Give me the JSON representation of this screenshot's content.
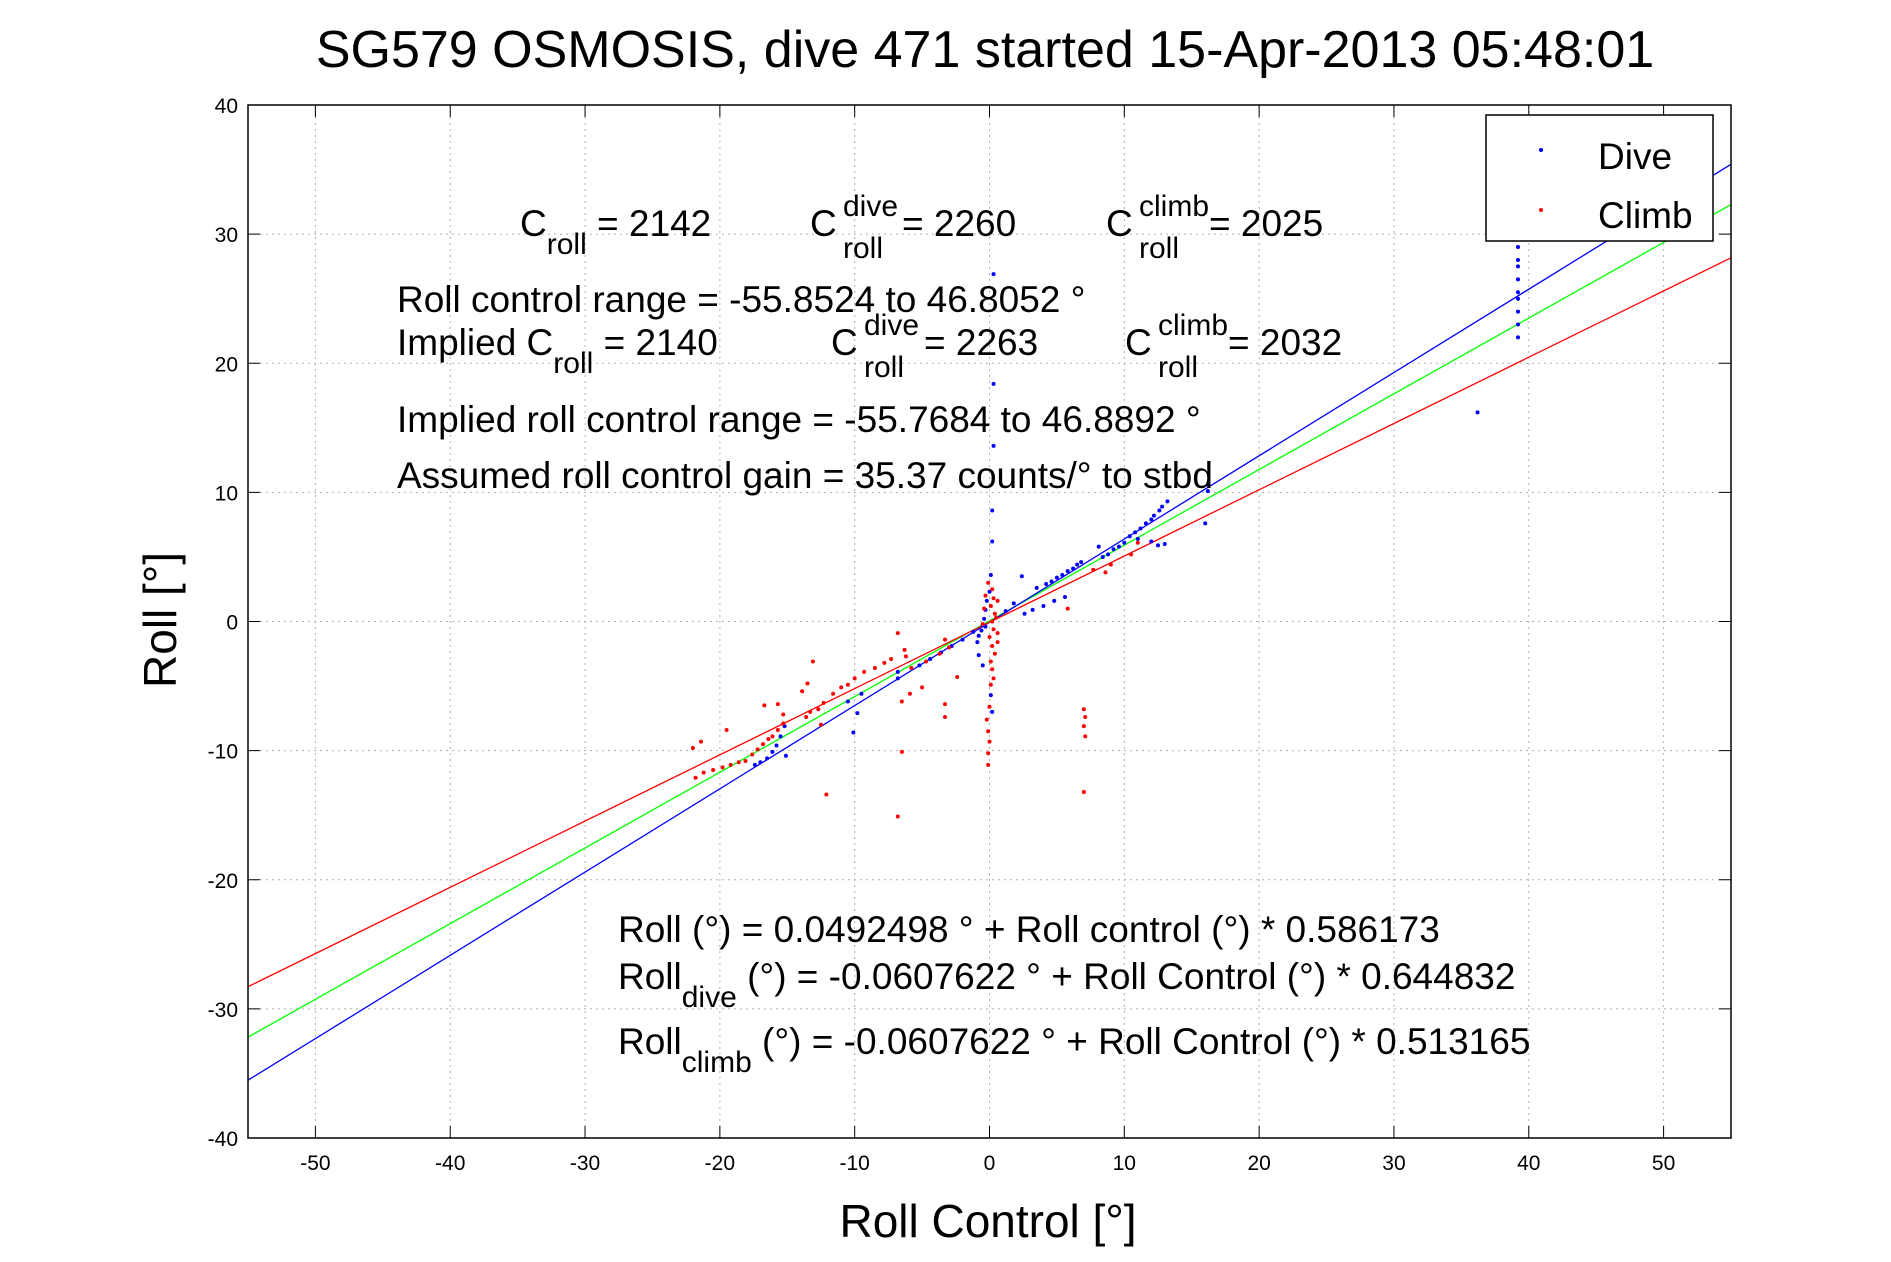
{
  "chart_data": {
    "type": "scatter",
    "title": "SG579 OSMOSIS, dive 471 started 15-Apr-2013 05:48:01",
    "xlabel": "Roll Control [°]",
    "ylabel": "Roll [°]",
    "xlim": [
      -55,
      55
    ],
    "ylim": [
      -40,
      40
    ],
    "xticks": [
      -50,
      -40,
      -30,
      -20,
      -10,
      0,
      10,
      20,
      30,
      40,
      50
    ],
    "yticks": [
      -40,
      -30,
      -20,
      -10,
      0,
      10,
      20,
      30,
      40
    ],
    "grid": true,
    "legend": {
      "position": "top-right",
      "entries": [
        {
          "label": "Dive",
          "color": "#0000ff"
        },
        {
          "label": "Climb",
          "color": "#ff0000"
        }
      ]
    },
    "series": [
      {
        "name": "Dive",
        "color": "#0000ff",
        "points": [
          [
            39.2,
            30.0
          ],
          [
            39.2,
            29.0
          ],
          [
            39.2,
            28.0
          ],
          [
            39.2,
            27.5
          ],
          [
            39.2,
            26.5
          ],
          [
            39.2,
            25.5
          ],
          [
            39.2,
            25.0
          ],
          [
            39.2,
            24.0
          ],
          [
            39.2,
            23.0
          ],
          [
            39.2,
            22.0
          ],
          [
            36.2,
            16.2
          ],
          [
            16.2,
            10.6
          ],
          [
            16.2,
            10.1
          ],
          [
            16.0,
            7.6
          ],
          [
            13.2,
            9.3
          ],
          [
            12.8,
            8.9
          ],
          [
            12.6,
            8.6
          ],
          [
            12.2,
            8.2
          ],
          [
            12.0,
            7.9
          ],
          [
            11.6,
            7.6
          ],
          [
            11.2,
            7.2
          ],
          [
            10.8,
            6.9
          ],
          [
            10.4,
            6.6
          ],
          [
            10.0,
            6.1
          ],
          [
            9.6,
            5.8
          ],
          [
            9.2,
            5.6
          ],
          [
            8.8,
            5.2
          ],
          [
            8.4,
            5.0
          ],
          [
            8.1,
            5.8
          ],
          [
            13.0,
            6.0
          ],
          [
            12.5,
            5.9
          ],
          [
            12.0,
            6.2
          ],
          [
            11.0,
            6.4
          ],
          [
            6.8,
            4.6
          ],
          [
            6.5,
            4.4
          ],
          [
            6.2,
            4.1
          ],
          [
            5.8,
            3.9
          ],
          [
            5.4,
            3.6
          ],
          [
            5.0,
            3.4
          ],
          [
            4.6,
            3.1
          ],
          [
            4.2,
            2.9
          ],
          [
            3.5,
            2.6
          ],
          [
            5.6,
            1.9
          ],
          [
            4.8,
            1.6
          ],
          [
            4.0,
            1.2
          ],
          [
            3.2,
            0.9
          ],
          [
            2.6,
            0.6
          ],
          [
            2.4,
            3.5
          ],
          [
            1.8,
            1.4
          ],
          [
            1.2,
            0.8
          ],
          [
            0.3,
            26.9
          ],
          [
            0.3,
            18.4
          ],
          [
            0.3,
            13.6
          ],
          [
            0.2,
            8.6
          ],
          [
            0.2,
            6.2
          ],
          [
            0.1,
            3.6
          ],
          [
            0.0,
            2.3
          ],
          [
            -0.2,
            1.6
          ],
          [
            -0.3,
            0.9
          ],
          [
            -0.4,
            0.2
          ],
          [
            -0.5,
            -0.3
          ],
          [
            -0.6,
            -0.7
          ],
          [
            -0.8,
            -1.1
          ],
          [
            -0.9,
            -1.6
          ],
          [
            -0.8,
            -2.6
          ],
          [
            -0.5,
            -3.4
          ],
          [
            0.1,
            -5.7
          ],
          [
            0.2,
            -7.0
          ],
          [
            -0.3,
            -0.4
          ],
          [
            -1.2,
            -0.8
          ],
          [
            -2.0,
            -1.4
          ],
          [
            -2.8,
            -1.9
          ],
          [
            -3.6,
            -2.4
          ],
          [
            -4.4,
            -2.9
          ],
          [
            -5.2,
            -3.4
          ],
          [
            -6.8,
            -3.9
          ],
          [
            -6.8,
            -4.4
          ],
          [
            -9.5,
            -5.6
          ],
          [
            -9.8,
            -7.1
          ],
          [
            -10.5,
            -6.2
          ],
          [
            -10.1,
            -8.6
          ],
          [
            -15.2,
            -8.1
          ],
          [
            -15.5,
            -8.9
          ],
          [
            -15.8,
            -9.6
          ],
          [
            -16.1,
            -10.1
          ],
          [
            -16.5,
            -10.6
          ],
          [
            -17.0,
            -10.9
          ],
          [
            -17.4,
            -11.1
          ],
          [
            -15.1,
            -10.4
          ]
        ]
      },
      {
        "name": "Climb",
        "color": "#ff0000",
        "points": [
          [
            0.2,
            2.5
          ],
          [
            0.3,
            1.8
          ],
          [
            0.1,
            1.2
          ],
          [
            0.4,
            0.6
          ],
          [
            0.2,
            0.0
          ],
          [
            0.3,
            -0.6
          ],
          [
            0.0,
            -1.2
          ],
          [
            0.2,
            -1.9
          ],
          [
            0.4,
            -2.5
          ],
          [
            0.1,
            -3.1
          ],
          [
            0.2,
            -3.7
          ],
          [
            0.3,
            -4.4
          ],
          [
            -0.1,
            3.0
          ],
          [
            -0.3,
            2.0
          ],
          [
            -0.4,
            1.0
          ],
          [
            -0.5,
            -0.2
          ],
          [
            0.6,
            -0.9
          ],
          [
            0.5,
            0.3
          ],
          [
            0.6,
            1.6
          ],
          [
            0.6,
            -1.6
          ],
          [
            0.1,
            -4.9
          ],
          [
            0.0,
            -6.6
          ],
          [
            -0.2,
            -7.6
          ],
          [
            -0.1,
            -8.5
          ],
          [
            0.0,
            -9.3
          ],
          [
            -0.1,
            -10.2
          ],
          [
            -0.1,
            -11.1
          ],
          [
            7.0,
            -6.8
          ],
          [
            7.1,
            -7.4
          ],
          [
            7.0,
            -8.1
          ],
          [
            7.1,
            -8.9
          ],
          [
            7.0,
            -13.2
          ],
          [
            -6.8,
            -15.1
          ],
          [
            -6.5,
            -10.1
          ],
          [
            -3.3,
            -6.4
          ],
          [
            -3.3,
            -7.4
          ],
          [
            -2.4,
            -4.3
          ],
          [
            -3.7,
            -2.5
          ],
          [
            -3.3,
            -1.4
          ],
          [
            -3.0,
            -2.0
          ],
          [
            -4.7,
            -3.1
          ],
          [
            -5.8,
            -3.6
          ],
          [
            -6.2,
            -2.7
          ],
          [
            -6.3,
            -2.2
          ],
          [
            -6.8,
            -0.9
          ],
          [
            -7.3,
            -2.9
          ],
          [
            -7.8,
            -3.2
          ],
          [
            -8.5,
            -3.6
          ],
          [
            -9.3,
            -3.9
          ],
          [
            -10.0,
            -4.4
          ],
          [
            -10.5,
            -4.9
          ],
          [
            -11.0,
            -5.1
          ],
          [
            -11.6,
            -5.6
          ],
          [
            -12.3,
            -6.3
          ],
          [
            -12.7,
            -6.8
          ],
          [
            -13.3,
            -7.0
          ],
          [
            -13.6,
            -7.4
          ],
          [
            -13.9,
            -5.4
          ],
          [
            -13.5,
            -4.8
          ],
          [
            -13.1,
            -3.1
          ],
          [
            -12.5,
            -8.0
          ],
          [
            -12.1,
            -13.4
          ],
          [
            -15.3,
            -7.9
          ],
          [
            -15.7,
            -8.4
          ],
          [
            -16.1,
            -8.9
          ],
          [
            -16.4,
            -9.1
          ],
          [
            -16.8,
            -9.5
          ],
          [
            -17.2,
            -9.9
          ],
          [
            -17.6,
            -10.3
          ],
          [
            -18.1,
            -10.8
          ],
          [
            -18.6,
            -10.9
          ],
          [
            -19.2,
            -11.1
          ],
          [
            -19.8,
            -11.3
          ],
          [
            -20.5,
            -11.5
          ],
          [
            -21.2,
            -11.7
          ],
          [
            -21.8,
            -12.1
          ],
          [
            -22.0,
            -9.8
          ],
          [
            -21.4,
            -9.3
          ],
          [
            -19.5,
            -8.4
          ],
          [
            -16.7,
            -6.5
          ],
          [
            -15.7,
            -6.4
          ],
          [
            -15.3,
            -7.2
          ],
          [
            -6.5,
            -6.2
          ],
          [
            -5.9,
            -5.6
          ],
          [
            -5.0,
            -5.1
          ],
          [
            11.0,
            6.1
          ],
          [
            10.5,
            5.2
          ],
          [
            9.0,
            4.4
          ],
          [
            7.7,
            4.0
          ],
          [
            8.6,
            3.8
          ],
          [
            5.8,
            1.0
          ]
        ]
      }
    ],
    "fit_lines": [
      {
        "name": "Roll fit",
        "color": "#00ff00",
        "intercept": 0.0492498,
        "slope": 0.586173
      },
      {
        "name": "Dive fit",
        "color": "#0000ff",
        "intercept": -0.0607622,
        "slope": 0.644832
      },
      {
        "name": "Climb fit",
        "color": "#ff0000",
        "intercept": -0.0607622,
        "slope": 0.513165
      }
    ],
    "annotations": {
      "c_roll": {
        "main": "C",
        "sub": "roll",
        "rest": " = 2142"
      },
      "c_roll_dive": {
        "main": "C",
        "sup": "dive",
        "sub": "roll",
        "rest": " = 2260"
      },
      "c_roll_climb": {
        "main": "C",
        "sup": "climb",
        "sub": "roll",
        "rest": " = 2025"
      },
      "range": "Roll control range = -55.8524 to 46.8052 °",
      "implied_prefix": "Implied C",
      "implied_sub": "roll",
      "implied_rest": " = 2140",
      "implied_dive": {
        "main": "C",
        "sup": "dive",
        "sub": "roll",
        "rest": " = 2263"
      },
      "implied_climb": {
        "main": "C",
        "sup": "climb",
        "sub": "roll",
        "rest": " = 2032"
      },
      "implied_range": "Implied roll control range = -55.7684 to 46.8892 °",
      "gain": "Assumed roll control gain = 35.37 counts/° to stbd",
      "eq_roll": "Roll (°) = 0.0492498 ° + Roll control (°) * 0.586173",
      "eq_dive_main": "Roll",
      "eq_dive_sub": "dive",
      "eq_dive_rest": " (°) = -0.0607622 ° + Roll Control (°) * 0.644832",
      "eq_climb_main": "Roll",
      "eq_climb_sub": "climb",
      "eq_climb_rest": " (°) = -0.0607622 ° + Roll Control (°) * 0.513165"
    }
  }
}
